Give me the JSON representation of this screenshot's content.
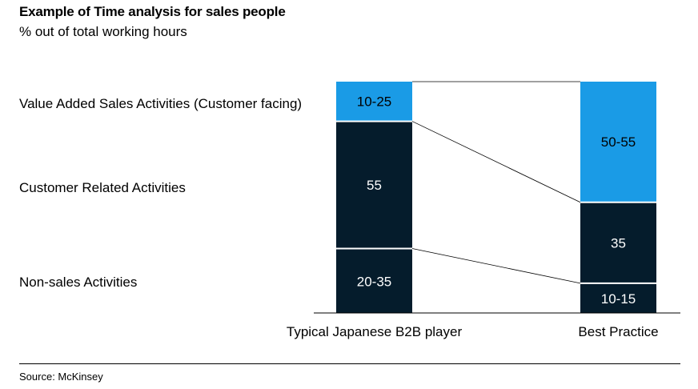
{
  "title": "Example of Time analysis for sales people",
  "subtitle": "% out of total working hours",
  "source": "Source: McKinsey",
  "colors": {
    "light_blue": "#1a9be6",
    "dark_navy": "#051c2c",
    "light_text": "#000000",
    "dark_text": "#ffffff"
  },
  "chart_data": {
    "type": "bar",
    "stacked": true,
    "title": "Example of Time analysis for sales people",
    "subtitle": "% out of total working hours",
    "ylim": [
      0,
      100
    ],
    "categories": [
      "Typical Japanese B2B player",
      "Best Practice"
    ],
    "row_labels": [
      "Value Added Sales Activities (Customer facing)",
      "Customer Related Activities",
      "Non-sales Activities"
    ],
    "series": [
      {
        "name": "Non-sales Activities",
        "values": [
          27.5,
          12.5
        ],
        "labels": [
          "20-35",
          "10-15"
        ],
        "color": "dark_navy"
      },
      {
        "name": "Customer Related Activities",
        "values": [
          55,
          35
        ],
        "labels": [
          "55",
          "35"
        ],
        "color": "dark_navy"
      },
      {
        "name": "Value Added Sales Activities (Customer facing)",
        "values": [
          17.5,
          52.5
        ],
        "labels": [
          "10-25",
          "50-55"
        ],
        "color": "light_blue"
      }
    ]
  }
}
